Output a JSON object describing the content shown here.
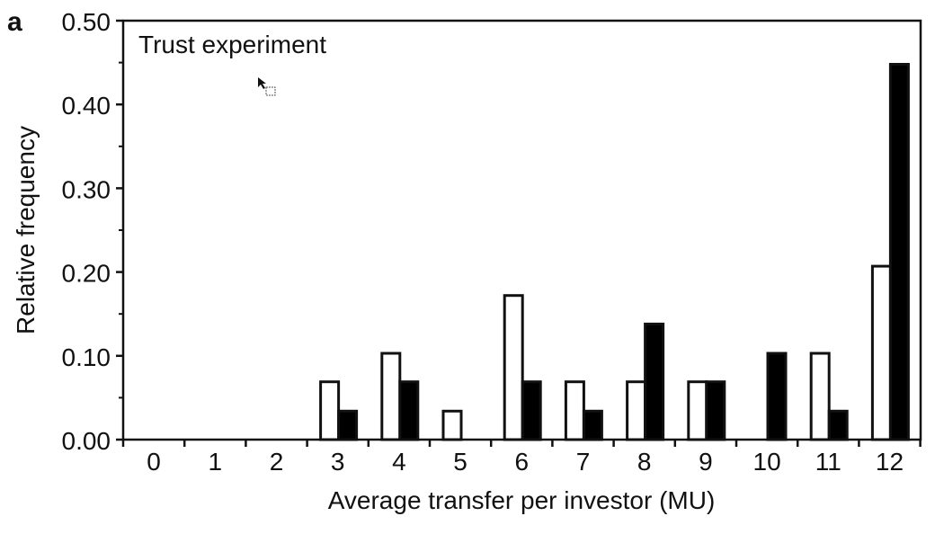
{
  "panel_label": "a",
  "chart_data": {
    "type": "bar",
    "annotation": "Trust experiment",
    "xlabel": "Average transfer per investor (MU)",
    "ylabel": "Relative frequency",
    "categories": [
      "0",
      "1",
      "2",
      "3",
      "4",
      "5",
      "6",
      "7",
      "8",
      "9",
      "10",
      "11",
      "12"
    ],
    "series": [
      {
        "fill": "#ffffff",
        "values": [
          0,
          0,
          0,
          0.069,
          0.103,
          0.034,
          0.172,
          0.069,
          0.069,
          0.069,
          0,
          0.103,
          0.207
        ]
      },
      {
        "fill": "#000000",
        "values": [
          0,
          0,
          0,
          0.034,
          0.069,
          0,
          0.069,
          0.034,
          0.138,
          0.069,
          0.103,
          0.034,
          0.448
        ]
      }
    ],
    "ylim": [
      0,
      0.5
    ],
    "yticks": [
      "0.00",
      "0.10",
      "0.20",
      "0.30",
      "0.40",
      "0.50"
    ],
    "ytick_values": [
      0,
      0.1,
      0.2,
      0.3,
      0.4,
      0.5
    ],
    "grid": false,
    "legend": "none",
    "colors": {
      "axis": "#111111",
      "bar_stroke": "#111111"
    }
  }
}
